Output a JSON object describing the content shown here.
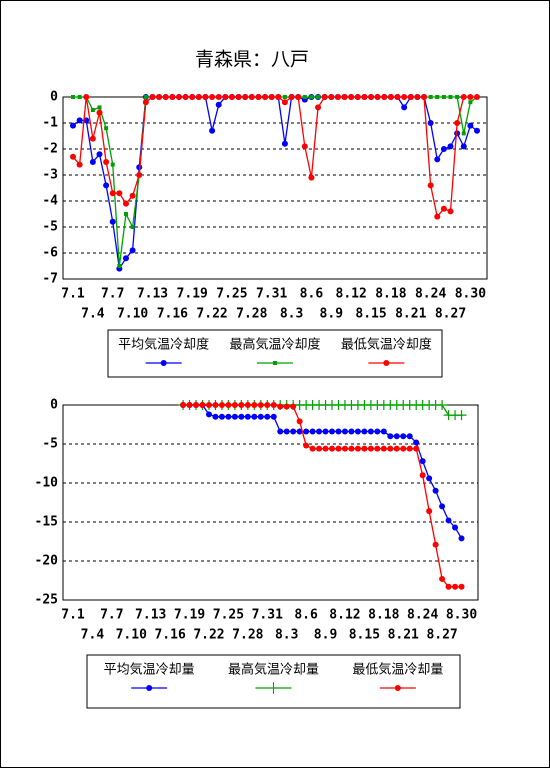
{
  "chart_data": [
    {
      "type": "line",
      "title": "青森県：八戸",
      "categories": [
        "7.1",
        null,
        null,
        "7.4",
        null,
        null,
        "7.7",
        null,
        null,
        "7.10",
        null,
        null,
        "7.13",
        null,
        null,
        "7.16",
        null,
        null,
        "7.19",
        null,
        null,
        "7.22",
        null,
        null,
        "7.25",
        null,
        null,
        "7.28",
        null,
        null,
        "7.31",
        null,
        null,
        "8.3",
        null,
        null,
        "8.6",
        null,
        null,
        "8.9",
        null,
        null,
        "8.12",
        null,
        null,
        "8.15",
        null,
        null,
        "8.18",
        null,
        null,
        "8.21",
        null,
        null,
        "8.24",
        null,
        null,
        "8.27",
        null,
        null,
        "8.30",
        null
      ],
      "ylim": [
        -7,
        0
      ],
      "yticks": [
        0,
        -1,
        -2,
        -3,
        -4,
        -5,
        -6,
        -7
      ],
      "grid": true,
      "series": [
        {
          "name": "平均気温冷却度",
          "color": "#0000ff",
          "marker": "circle",
          "values": [
            -1.1,
            -0.9,
            -0.9,
            -2.5,
            -2.2,
            -3.4,
            -4.8,
            -6.6,
            -6.2,
            -5.9,
            -2.7,
            0,
            0,
            0,
            0,
            0,
            0,
            0,
            0,
            0,
            0,
            -1.3,
            -0.3,
            0,
            0,
            0,
            0,
            0,
            0,
            0,
            0,
            0,
            -1.8,
            0,
            0,
            -0.1,
            0,
            0,
            0,
            0,
            0,
            0,
            0,
            0,
            0,
            0,
            0,
            0,
            0,
            0,
            -0.4,
            0,
            0,
            0,
            -1.0,
            -2.4,
            -2.0,
            -1.9,
            -1.4,
            -1.9,
            -1.1,
            -1.3
          ]
        },
        {
          "name": "最高気温冷却度",
          "color": "#00a000",
          "marker": "square",
          "values": [
            0,
            0,
            0,
            -0.5,
            -0.4,
            -1.2,
            -2.6,
            -6.5,
            -4.5,
            -5.0,
            -3.0,
            0,
            0,
            0,
            0,
            0,
            0,
            0,
            0,
            0,
            0,
            0,
            0,
            0,
            0,
            0,
            0,
            0,
            0,
            0,
            0,
            0,
            0,
            0,
            0,
            0,
            0,
            0,
            0,
            0,
            0,
            0,
            0,
            0,
            0,
            0,
            0,
            0,
            0,
            0,
            0,
            0,
            0,
            0,
            0,
            0,
            0,
            0,
            0,
            -1.4,
            -0.2,
            0
          ]
        },
        {
          "name": "最低気温冷却度",
          "color": "#ff0000",
          "marker": "circle",
          "values": [
            -2.3,
            -2.6,
            0,
            -1.6,
            -0.6,
            -2.5,
            -3.7,
            -3.7,
            -4.1,
            -3.8,
            -3.0,
            -0.2,
            0,
            0,
            0,
            0,
            0,
            0,
            0,
            0,
            0,
            0,
            0,
            0,
            0,
            0,
            0,
            0,
            0,
            0,
            0,
            0,
            -0.2,
            0,
            0,
            -1.9,
            -3.1,
            -0.4,
            0,
            0,
            0,
            0,
            0,
            0,
            0,
            0,
            0,
            0,
            0,
            0,
            0,
            0,
            0,
            0,
            -3.4,
            -4.6,
            -4.3,
            -4.4,
            -1.0,
            0,
            0,
            0
          ]
        }
      ]
    },
    {
      "type": "line",
      "categories": [
        "7.1",
        null,
        null,
        "7.4",
        null,
        null,
        "7.7",
        null,
        null,
        "7.10",
        null,
        null,
        "7.13",
        null,
        null,
        "7.16",
        null,
        null,
        "7.19",
        null,
        null,
        "7.22",
        null,
        null,
        "7.25",
        null,
        null,
        "7.28",
        null,
        null,
        "7.31",
        null,
        null,
        "8.3",
        null,
        null,
        "8.6",
        null,
        null,
        "8.9",
        null,
        null,
        "8.12",
        null,
        null,
        "8.15",
        null,
        null,
        "8.18",
        null,
        null,
        "8.21",
        null,
        null,
        "8.24",
        null,
        null,
        "8.27",
        null,
        null,
        "8.30",
        null
      ],
      "ylim": [
        -25,
        0
      ],
      "yticks": [
        0,
        -5,
        -10,
        -15,
        -20,
        -25
      ],
      "grid": true,
      "series": [
        {
          "name": "平均気温冷却量",
          "color": "#0000ff",
          "marker": "circle",
          "values": [
            null,
            null,
            null,
            null,
            null,
            null,
            null,
            null,
            null,
            null,
            null,
            null,
            null,
            null,
            null,
            null,
            null,
            0,
            0,
            0,
            0,
            -1.2,
            -1.5,
            -1.5,
            -1.5,
            -1.5,
            -1.5,
            -1.5,
            -1.5,
            -1.5,
            -1.5,
            -1.5,
            -3.4,
            -3.4,
            -3.4,
            -3.4,
            -3.4,
            -3.4,
            -3.4,
            -3.4,
            -3.4,
            -3.4,
            -3.4,
            -3.4,
            -3.4,
            -3.4,
            -3.4,
            -3.4,
            -3.4,
            -4.0,
            -4.0,
            -4.0,
            -4.0,
            -4.8,
            -7.2,
            -9.4,
            -11.0,
            -13.0,
            -14.8,
            -15.7,
            -17.1,
            null
          ]
        },
        {
          "name": "最高気温冷却量",
          "color": "#00a000",
          "marker": "plus",
          "values": [
            null,
            null,
            null,
            null,
            null,
            null,
            null,
            null,
            null,
            null,
            null,
            null,
            null,
            null,
            null,
            null,
            null,
            0,
            0,
            0,
            0,
            0,
            0,
            0,
            0,
            0,
            0,
            0,
            0,
            0,
            0,
            0,
            0,
            0,
            0,
            0,
            0,
            0,
            0,
            0,
            0,
            0,
            0,
            0,
            0,
            0,
            0,
            0,
            0,
            0,
            0,
            0,
            0,
            0,
            0,
            0,
            0,
            0,
            -1.3,
            -1.3,
            -1.3,
            null
          ]
        },
        {
          "name": "最低気温冷却量",
          "color": "#ff0000",
          "marker": "circle",
          "values": [
            null,
            null,
            null,
            null,
            null,
            null,
            null,
            null,
            null,
            null,
            null,
            null,
            null,
            null,
            null,
            null,
            null,
            0,
            0,
            0,
            0,
            0,
            0,
            0,
            0,
            0,
            0,
            0,
            0,
            0,
            0,
            0,
            -0.2,
            -0.2,
            -0.2,
            -2.1,
            -5.2,
            -5.6,
            -5.6,
            -5.6,
            -5.6,
            -5.6,
            -5.6,
            -5.6,
            -5.6,
            -5.6,
            -5.6,
            -5.6,
            -5.6,
            -5.6,
            -5.6,
            -5.6,
            -5.6,
            -5.6,
            -9.0,
            -13.6,
            -17.9,
            -22.3,
            -23.3,
            -23.3,
            -23.3,
            null
          ]
        }
      ]
    }
  ]
}
